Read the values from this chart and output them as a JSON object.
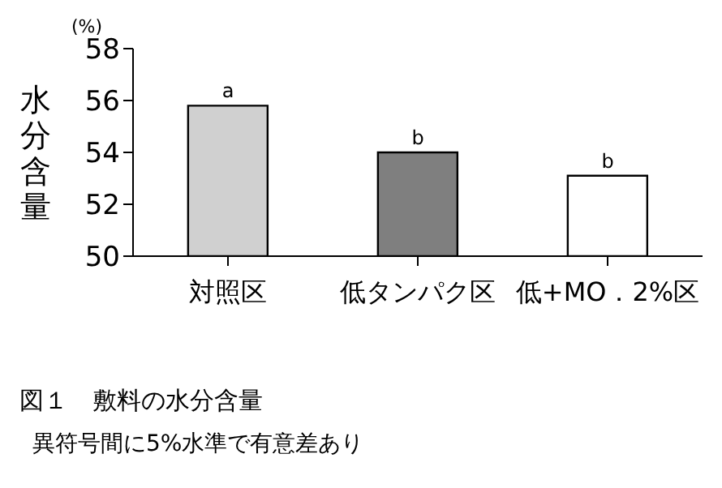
{
  "chart_data": {
    "type": "bar",
    "title": "図１　敷料の水分含量",
    "subtitle": "異符号間に5%水準で有意差あり",
    "ylabel": "水分含量",
    "categories": [
      "対照区",
      "低タンパク区",
      "低+MO．2%区"
    ],
    "values": [
      55.8,
      54.0,
      53.1
    ],
    "colors": [
      "#d0d0d0",
      "#7f7f7f",
      "#ffffff"
    ],
    "ylim": [
      50,
      58
    ],
    "yticks": [
      50,
      52,
      54,
      56,
      58
    ],
    "grid": false,
    "legend": false,
    "annotations": [
      "(%)",
      {
        "text": "a",
        "x": "対照区",
        "y": 55.8
      },
      {
        "text": "b",
        "x": "低タンパク区",
        "y": 54.0
      },
      {
        "text": "b",
        "x": "低+MO．2%区",
        "y": 53.1
      }
    ]
  }
}
